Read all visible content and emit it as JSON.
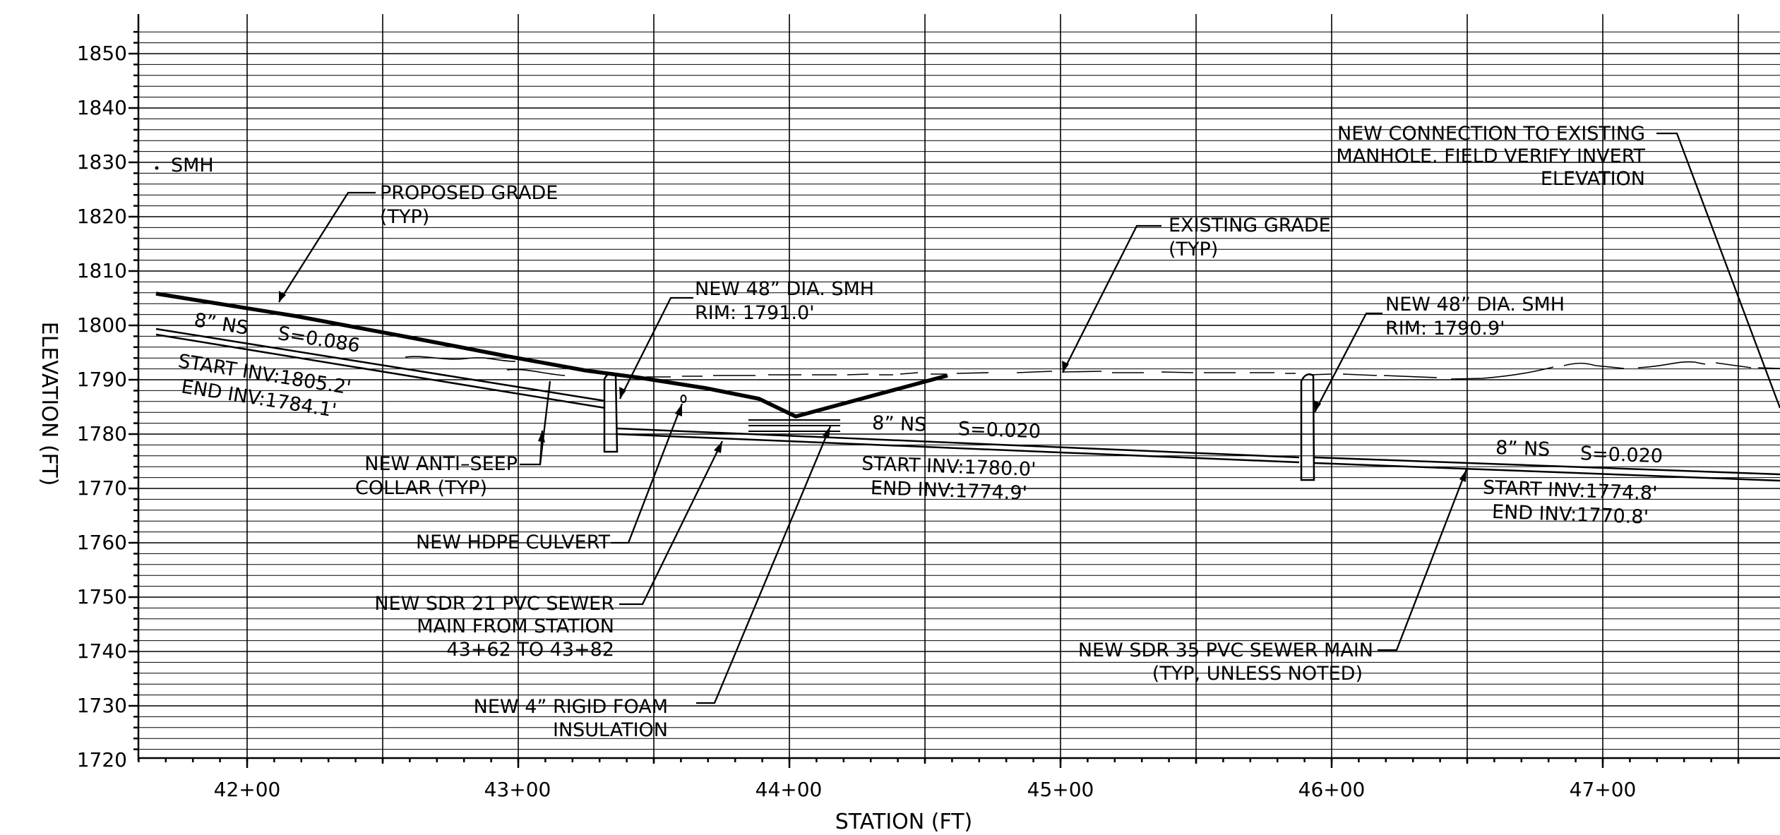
{
  "axes": {
    "x_label": "STATION (FT)",
    "y_label": "ELEVATION (FT)",
    "x_ticks": [
      "42+00",
      "43+00",
      "44+00",
      "45+00",
      "46+00",
      "47+00"
    ],
    "y_ticks": [
      "1850",
      "1840",
      "1830",
      "1820",
      "1810",
      "1800",
      "1790",
      "1780",
      "1770",
      "1760",
      "1750",
      "1740",
      "1730",
      "1720"
    ]
  },
  "labels": {
    "smh_left": "SMH",
    "proposed_grade_1": "PROPOSED GRADE",
    "proposed_grade_2": "(TYP)",
    "existing_grade_1": "EXISTING GRADE",
    "existing_grade_2": "(TYP)",
    "conn_1": "NEW CONNECTION TO EXISTING",
    "conn_2": "MANHOLE. FIELD VERIFY INVERT",
    "conn_3": "ELEVATION",
    "smh1_1": "NEW 48” DIA. SMH",
    "smh1_2": "RIM: 1791.0'",
    "smh2_1": "NEW 48” DIA. SMH",
    "smh2_2": "RIM: 1790.9'",
    "pipe1_size": "8” NS",
    "pipe1_slope": "S=0.086",
    "pipe1_start": "START INV:1805.2'",
    "pipe1_end": "END INV:1784.1'",
    "pipe2_size": "8” NS",
    "pipe2_slope": "S=0.020",
    "pipe2_start": "START INV:1780.0'",
    "pipe2_end": "END INV:1774.9'",
    "pipe3_size": "8” NS",
    "pipe3_slope": "S=0.020",
    "pipe3_start": "START INV:1774.8'",
    "pipe3_end": "END INV:1770.8'",
    "antiseep_1": "NEW ANTI–SEEP",
    "antiseep_2": "COLLAR (TYP)",
    "culvert": "NEW HDPE CULVERT",
    "sdr21_1": "NEW SDR 21 PVC SEWER",
    "sdr21_2": "MAIN FROM STATION",
    "sdr21_3": "43+62 TO 43+82",
    "foam_1": "NEW 4” RIGID FOAM",
    "foam_2": "INSULATION",
    "sdr35_1": "NEW SDR 35 PVC SEWER MAIN",
    "sdr35_2": "(TYP, UNLESS NOTED)"
  }
}
